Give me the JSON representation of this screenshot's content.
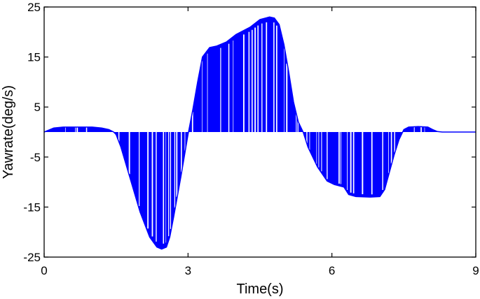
{
  "chart_data": {
    "type": "area",
    "xlabel": "Time(s)",
    "ylabel": "Yawrate(deg/s)",
    "xlim": [
      0,
      9
    ],
    "ylim": [
      -25,
      25
    ],
    "xticks": [
      0,
      3,
      6,
      9
    ],
    "xtick_labels": [
      "0",
      "3",
      "6",
      "9"
    ],
    "yticks": [
      25,
      15,
      5,
      -5,
      -15,
      -25
    ],
    "ytick_labels": [
      "25",
      "15",
      "5",
      "-5",
      "-15",
      "-25"
    ],
    "grid": false,
    "color": "#0000ff",
    "series": [
      {
        "name": "",
        "x": [
          0,
          0.2,
          0.4,
          0.7,
          1.0,
          1.2,
          1.35,
          1.45,
          1.5,
          1.6,
          1.8,
          2.0,
          2.2,
          2.35,
          2.45,
          2.55,
          2.62,
          2.7,
          2.85,
          3.0,
          3.1,
          3.2,
          3.3,
          3.45,
          3.6,
          3.8,
          4.0,
          4.3,
          4.5,
          4.7,
          4.8,
          4.9,
          5.0,
          5.1,
          5.2,
          5.3,
          5.4,
          5.5,
          5.7,
          5.9,
          6.05,
          6.25,
          6.35,
          6.5,
          6.8,
          7.0,
          7.1,
          7.2,
          7.3,
          7.4,
          7.5,
          7.6,
          7.8,
          8.0,
          8.1,
          8.2,
          8.3,
          8.5,
          9.0
        ],
        "y": [
          0.0,
          0.8,
          1.0,
          1.0,
          1.0,
          0.8,
          0.5,
          0.0,
          -0.5,
          -3.0,
          -9.5,
          -16.0,
          -21.0,
          -23.0,
          -23.4,
          -23.0,
          -21.0,
          -17.0,
          -9.0,
          -0.5,
          4.5,
          10.0,
          15.0,
          16.9,
          17.2,
          18.0,
          19.5,
          21.0,
          22.5,
          23.0,
          22.8,
          21.5,
          17.5,
          12.0,
          6.0,
          2.0,
          0.0,
          -3.0,
          -7.0,
          -9.8,
          -10.5,
          -11.0,
          -12.5,
          -12.9,
          -13.0,
          -12.9,
          -11.5,
          -8.0,
          -4.5,
          -1.5,
          0.5,
          1.0,
          1.1,
          1.0,
          0.5,
          0.1,
          0.0,
          0.0,
          0.0
        ]
      }
    ]
  }
}
